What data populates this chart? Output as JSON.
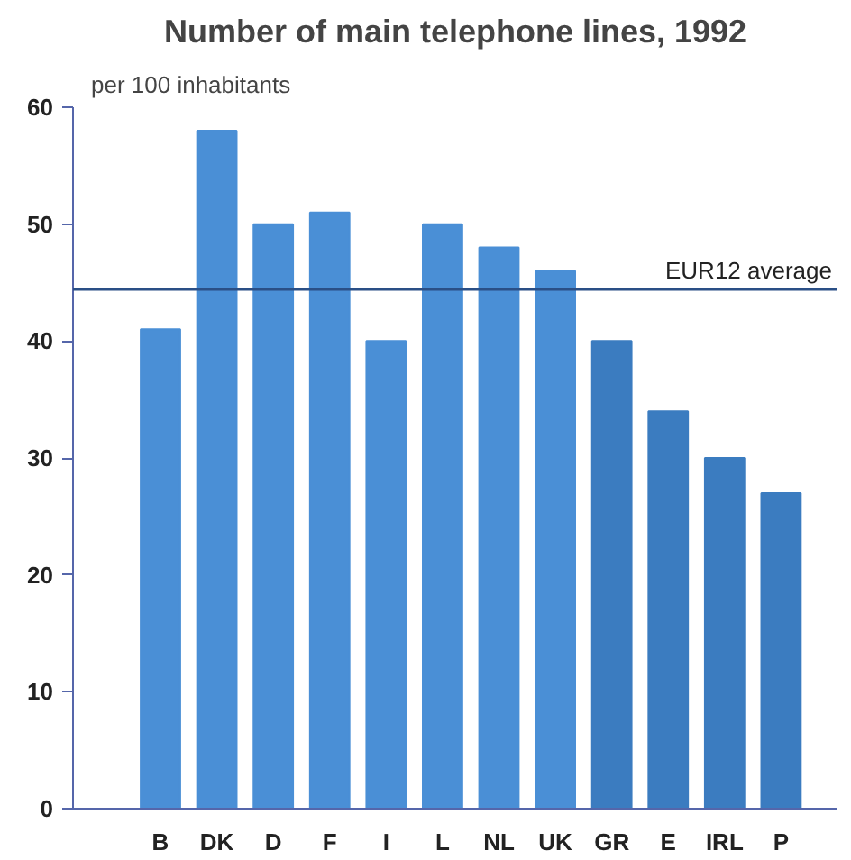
{
  "chart_data": {
    "type": "bar",
    "title": "Number of main telephone lines, 1992",
    "ylabel": "per 100 inhabitants",
    "categories": [
      "B",
      "DK",
      "D",
      "F",
      "I",
      "L",
      "NL",
      "UK",
      "GR",
      "E",
      "IRL",
      "P"
    ],
    "values": [
      41,
      58,
      50,
      51,
      40,
      50,
      48,
      46,
      40,
      34,
      30,
      27
    ],
    "colors": [
      "#4a8fd6",
      "#4a8fd6",
      "#4a8fd6",
      "#4a8fd6",
      "#4a8fd6",
      "#4a8fd6",
      "#4a8fd6",
      "#4a8fd6",
      "#3b7cc0",
      "#3b7cc0",
      "#3b7cc0",
      "#3b7cc0"
    ],
    "ylim": [
      0,
      60
    ],
    "yticks": [
      0,
      10,
      20,
      30,
      40,
      50,
      60
    ],
    "ref_lines": [
      {
        "axis": "y",
        "value": 44.4,
        "label": "EUR12 average",
        "color": "#2a4f86"
      }
    ],
    "grid": false
  }
}
